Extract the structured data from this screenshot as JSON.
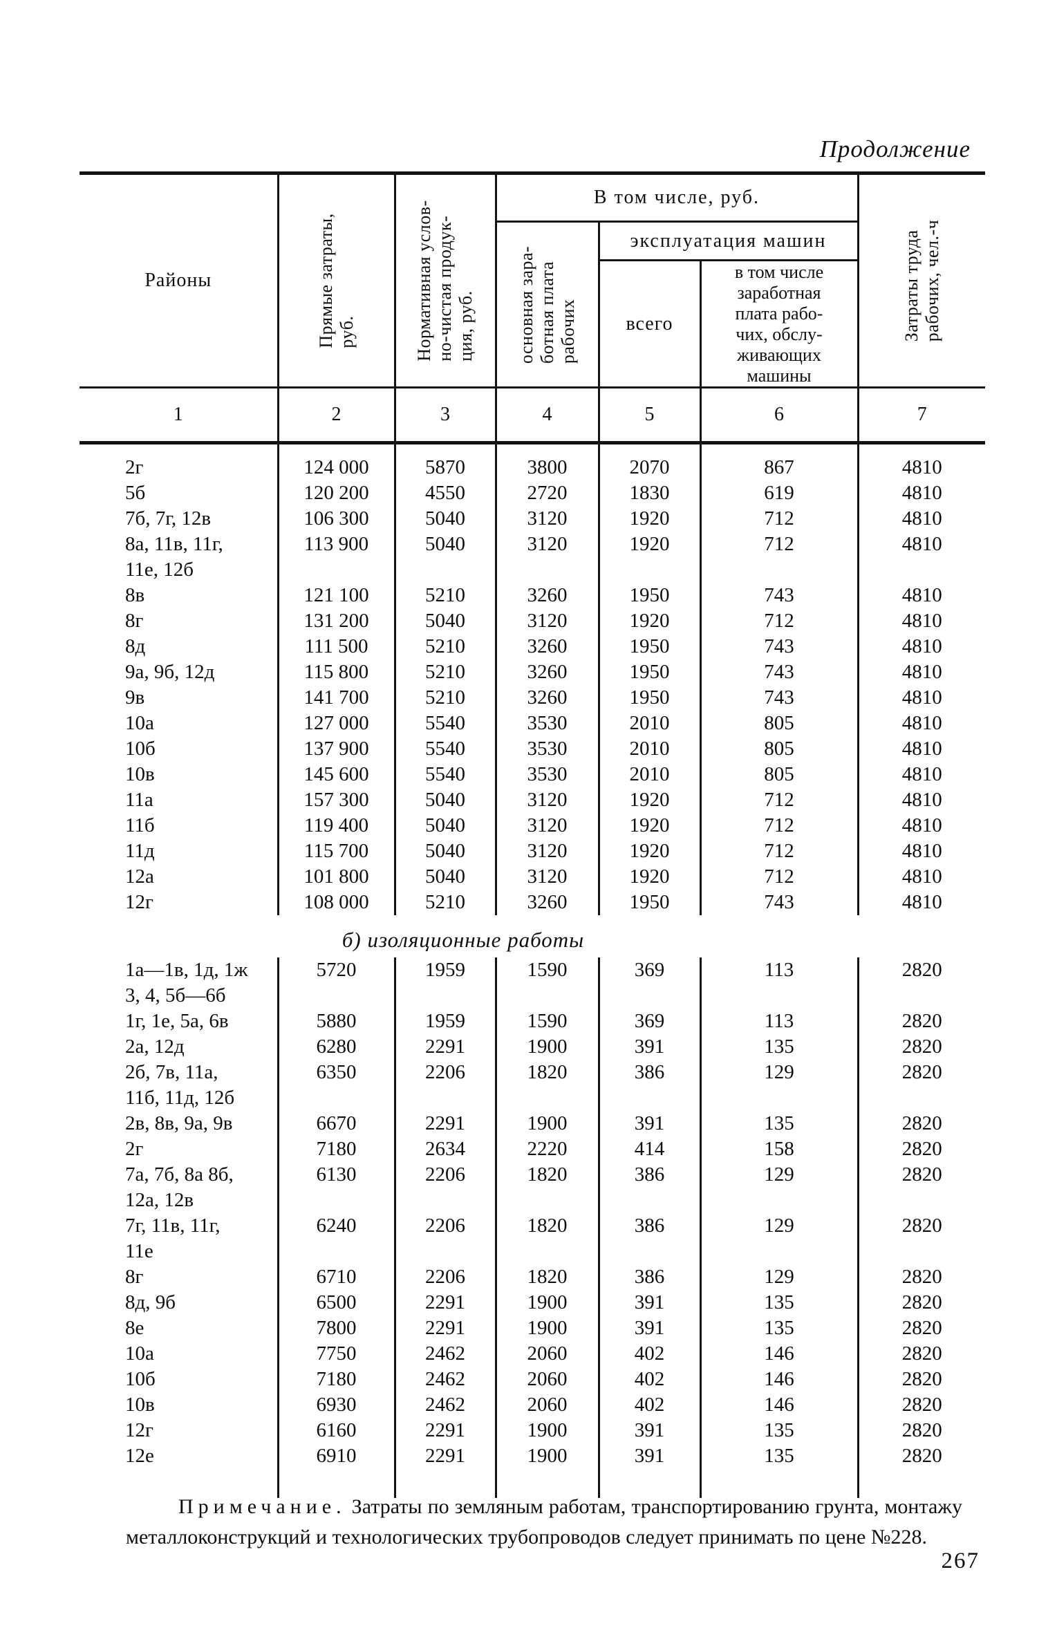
{
  "page": {
    "continuation_label": "Продолжение",
    "page_number": "267"
  },
  "table": {
    "header": {
      "col1": "Районы",
      "col2": "Прямые затраты,\nруб.",
      "col3": "Нормативная услов-\nно-чистая продук-\nция, руб.",
      "group_top": "В том числе, руб.",
      "col4": "основная зара-\nботная плата\nрабочих",
      "group_machines": "эксплуатация машин",
      "col5": "всего",
      "col6": "в том числе\nзаработная\nплата рабо-\nчих, обслу-\nживающих\nмашины",
      "col7": "Затраты труда\nрабочих, чел.-ч",
      "numbers": [
        "1",
        "2",
        "3",
        "4",
        "5",
        "6",
        "7"
      ]
    },
    "sections": [
      {
        "title": null,
        "rows": [
          {
            "region": "2г",
            "values": [
              "124 000",
              "5870",
              "3800",
              "2070",
              "867",
              "4810"
            ]
          },
          {
            "region": "5б",
            "values": [
              "120 200",
              "4550",
              "2720",
              "1830",
              "619",
              "4810"
            ]
          },
          {
            "region": "7б, 7г, 12в",
            "values": [
              "106 300",
              "5040",
              "3120",
              "1920",
              "712",
              "4810"
            ]
          },
          {
            "region": "8а, 11в, 11г,\n11е, 12б",
            "values": [
              "113 900",
              "5040",
              "3120",
              "1920",
              "712",
              "4810"
            ]
          },
          {
            "region": "8в",
            "values": [
              "121 100",
              "5210",
              "3260",
              "1950",
              "743",
              "4810"
            ]
          },
          {
            "region": "8г",
            "values": [
              "131 200",
              "5040",
              "3120",
              "1920",
              "712",
              "4810"
            ]
          },
          {
            "region": "8д",
            "values": [
              "111 500",
              "5210",
              "3260",
              "1950",
              "743",
              "4810"
            ]
          },
          {
            "region": "9а, 9б, 12д",
            "values": [
              "115 800",
              "5210",
              "3260",
              "1950",
              "743",
              "4810"
            ]
          },
          {
            "region": "9в",
            "values": [
              "141 700",
              "5210",
              "3260",
              "1950",
              "743",
              "4810"
            ]
          },
          {
            "region": "10а",
            "values": [
              "127 000",
              "5540",
              "3530",
              "2010",
              "805",
              "4810"
            ]
          },
          {
            "region": "10б",
            "values": [
              "137 900",
              "5540",
              "3530",
              "2010",
              "805",
              "4810"
            ]
          },
          {
            "region": "10в",
            "values": [
              "145 600",
              "5540",
              "3530",
              "2010",
              "805",
              "4810"
            ]
          },
          {
            "region": "11а",
            "values": [
              "157 300",
              "5040",
              "3120",
              "1920",
              "712",
              "4810"
            ]
          },
          {
            "region": "11б",
            "values": [
              "119 400",
              "5040",
              "3120",
              "1920",
              "712",
              "4810"
            ]
          },
          {
            "region": "11д",
            "values": [
              "115 700",
              "5040",
              "3120",
              "1920",
              "712",
              "4810"
            ]
          },
          {
            "region": "12а",
            "values": [
              "101 800",
              "5040",
              "3120",
              "1920",
              "712",
              "4810"
            ]
          },
          {
            "region": "12г",
            "values": [
              "108 000",
              "5210",
              "3260",
              "1950",
              "743",
              "4810"
            ]
          }
        ]
      },
      {
        "title": "б) изоляционные работы",
        "rows": [
          {
            "region": "1а—1в, 1д, 1ж\n3, 4, 5б—6б",
            "values": [
              "5720",
              "1959",
              "1590",
              "369",
              "113",
              "2820"
            ]
          },
          {
            "region": "1г, 1е, 5а, 6в",
            "values": [
              "5880",
              "1959",
              "1590",
              "369",
              "113",
              "2820"
            ]
          },
          {
            "region": "2а, 12д",
            "values": [
              "6280",
              "2291",
              "1900",
              "391",
              "135",
              "2820"
            ]
          },
          {
            "region": "2б, 7в, 11а,\n11б, 11д, 12б",
            "values": [
              "6350",
              "2206",
              "1820",
              "386",
              "129",
              "2820"
            ]
          },
          {
            "region": "2в, 8в, 9а, 9в",
            "values": [
              "6670",
              "2291",
              "1900",
              "391",
              "135",
              "2820"
            ]
          },
          {
            "region": "2г",
            "values": [
              "7180",
              "2634",
              "2220",
              "414",
              "158",
              "2820"
            ]
          },
          {
            "region": "7а, 7б, 8а 8б,\n12а, 12в",
            "values": [
              "6130",
              "2206",
              "1820",
              "386",
              "129",
              "2820"
            ]
          },
          {
            "region": "7г, 11в, 11г,\n11е",
            "values": [
              "6240",
              "2206",
              "1820",
              "386",
              "129",
              "2820"
            ]
          },
          {
            "region": "8г",
            "values": [
              "6710",
              "2206",
              "1820",
              "386",
              "129",
              "2820"
            ]
          },
          {
            "region": "8д, 9б",
            "values": [
              "6500",
              "2291",
              "1900",
              "391",
              "135",
              "2820"
            ]
          },
          {
            "region": "8е",
            "values": [
              "7800",
              "2291",
              "1900",
              "391",
              "135",
              "2820"
            ]
          },
          {
            "region": "10а",
            "values": [
              "7750",
              "2462",
              "2060",
              "402",
              "146",
              "2820"
            ]
          },
          {
            "region": "10б",
            "values": [
              "7180",
              "2462",
              "2060",
              "402",
              "146",
              "2820"
            ]
          },
          {
            "region": "10в",
            "values": [
              "6930",
              "2462",
              "2060",
              "402",
              "146",
              "2820"
            ]
          },
          {
            "region": "12г",
            "values": [
              "6160",
              "2291",
              "1900",
              "391",
              "135",
              "2820"
            ]
          },
          {
            "region": "12е",
            "values": [
              "6910",
              "2291",
              "1900",
              "391",
              "135",
              "2820"
            ]
          }
        ]
      }
    ]
  },
  "note": {
    "label": "Примечание.",
    "text": " Затраты по земляным работам, транспортированию грунта, монтажу металлоконструкций и технологических трубопроводов следует принимать по цене №228."
  }
}
